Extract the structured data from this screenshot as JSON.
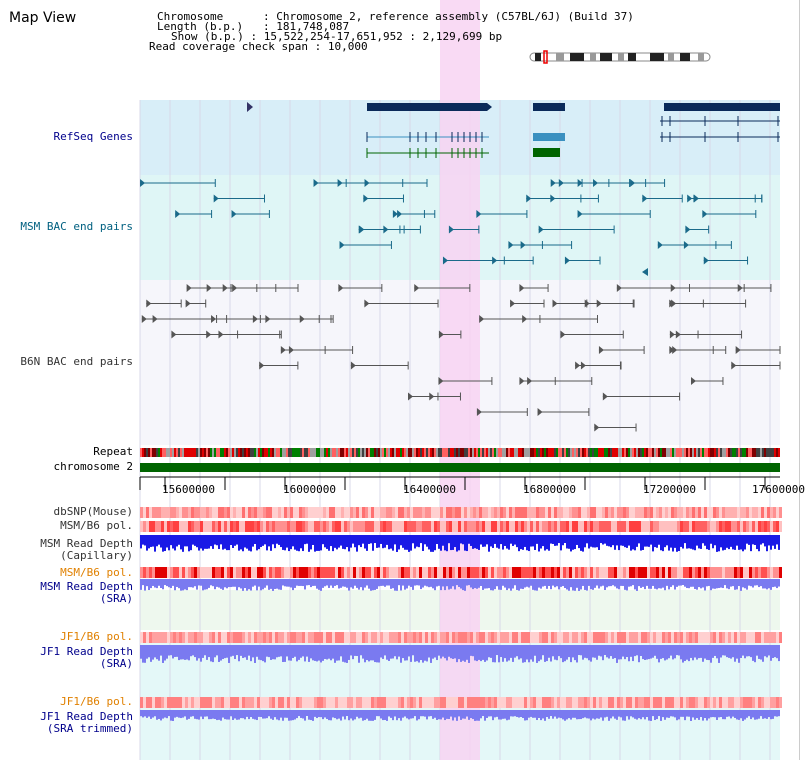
{
  "title": "Map View",
  "info": {
    "chromosome_key": "Chromosome",
    "chromosome_value": "Chromosome 2, reference assembly (C57BL/6J) (Build 37)",
    "length_key": "Length (b.p.)",
    "length_value": "181,748,087",
    "show_key": "Show (b.p.)",
    "show_value": "15,522,254-17,651,952 : 2,129,699 bp",
    "coverage_key": "Read coverage check span",
    "coverage_value": "10,000"
  },
  "tracks": {
    "refseq": "RefSeq Genes",
    "msm_bac": "MSM BAC end pairs",
    "b6n_bac": "B6N BAC end pairs",
    "repeat": "Repeat",
    "chromosome": "chromosome 2",
    "dbsnp": "dbSNP(Mouse)",
    "msm_b6_pol": "MSM/B6 pol.",
    "msm_depth_cap_1": "MSM Read Depth",
    "msm_depth_cap_2": "(Capillary)",
    "msm_b6_pol_2": "MSM/B6 pol.",
    "msm_depth_sra_1": "MSM Read Depth",
    "msm_depth_sra_2": "(SRA)",
    "jf1_b6_pol": "JF1/B6 pol.",
    "jf1_depth_sra_1": "JF1 Read Depth",
    "jf1_depth_sra_2": "(SRA)",
    "jf1_b6_pol_2": "JF1/B6 pol.",
    "jf1_depth_trim_1": "JF1 Read Depth",
    "jf1_depth_trim_2": "(SRA trimmed)"
  },
  "axis": {
    "ticks": [
      "15600000",
      "16000000",
      "16400000",
      "16800000",
      "17200000",
      "17600000"
    ]
  },
  "colors": {
    "refseq_bg": "#d8eef8",
    "msm_bg": "#dff6f6",
    "b6n_bg": "#f6f6fb",
    "highlight": "#f8d4f2",
    "gene_navy": "#0a2a5a",
    "gene_blue": "#3a90c0",
    "gene_green": "#006400",
    "chrom_green": "#006400",
    "depth_blue": "#1a1ae6",
    "depth_light": "#7a7af0"
  }
}
